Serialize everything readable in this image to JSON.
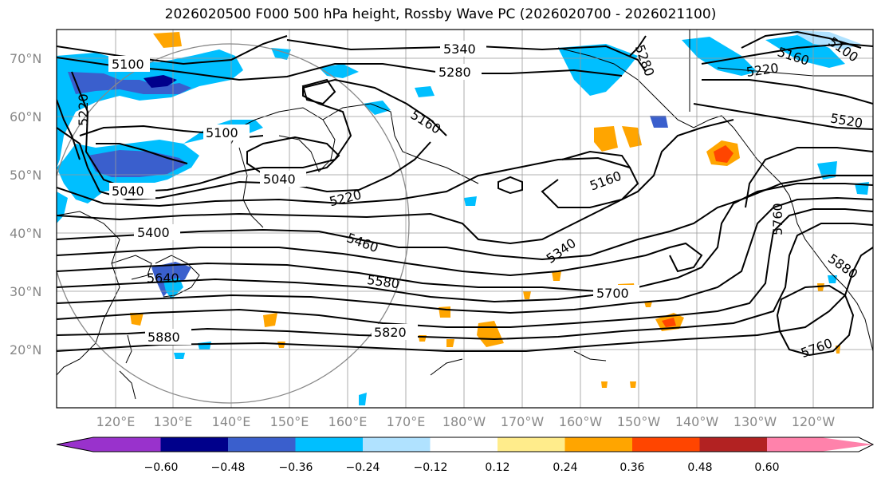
{
  "title": "2026020500 F000 500 hPa height, Rossby Wave PC (2026020700 - 2026021100)",
  "lat_labels": [
    "70°N",
    "60°N",
    "50°N",
    "40°N",
    "30°N",
    "20°N"
  ],
  "lon_labels": [
    "120°E",
    "130°E",
    "140°E",
    "150°E",
    "160°E",
    "170°E",
    "180°W",
    "170°W",
    "160°W",
    "150°W",
    "140°W",
    "130°W",
    "120°W"
  ],
  "contour_labels": [
    {
      "text": "5100",
      "id": "c1"
    },
    {
      "text": "5340",
      "id": "c2"
    },
    {
      "text": "5280",
      "id": "c3"
    },
    {
      "text": "5220",
      "id": "c4"
    },
    {
      "text": "5100",
      "id": "c5"
    },
    {
      "text": "5160",
      "id": "c6"
    },
    {
      "text": "5040",
      "id": "c7"
    },
    {
      "text": "5040",
      "id": "c8"
    },
    {
      "text": "5220",
      "id": "c9"
    },
    {
      "text": "5400",
      "id": "c10"
    },
    {
      "text": "5460",
      "id": "c11"
    },
    {
      "text": "5160",
      "id": "c12"
    },
    {
      "text": "5340",
      "id": "c13"
    },
    {
      "text": "5640",
      "id": "c14"
    },
    {
      "text": "5580",
      "id": "c15"
    },
    {
      "text": "5700",
      "id": "c16"
    },
    {
      "text": "5760",
      "id": "c17"
    },
    {
      "text": "5880",
      "id": "c18"
    },
    {
      "text": "5820",
      "id": "c19"
    },
    {
      "text": "5760",
      "id": "c20"
    },
    {
      "text": "5880",
      "id": "c21"
    },
    {
      "text": "5280",
      "id": "c22"
    },
    {
      "text": "5220",
      "id": "c23"
    },
    {
      "text": "5160",
      "id": "c24"
    },
    {
      "text": "5520",
      "id": "c25"
    },
    {
      "text": "5100",
      "id": "c26"
    }
  ],
  "colorbar": {
    "ticks": [
      "−0.60",
      "−0.48",
      "−0.36",
      "−0.24",
      "−0.12",
      "0.12",
      "0.24",
      "0.36",
      "0.48",
      "0.60"
    ],
    "colors": [
      "#9932cc",
      "#00008b",
      "#3a5fcd",
      "#00bfff",
      "#b0e2ff",
      "#ffffff",
      "#ffec8b",
      "#ffa500",
      "#ff4500",
      "#b22222",
      "#ff82ab"
    ]
  }
}
